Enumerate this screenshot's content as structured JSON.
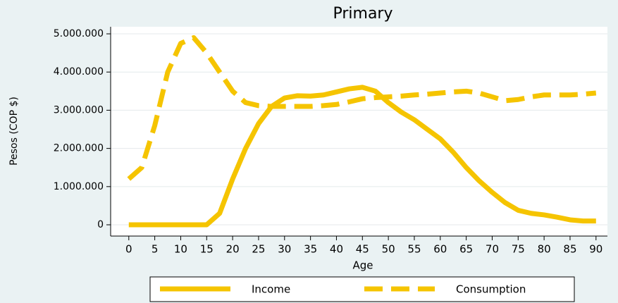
{
  "chart_data": {
    "type": "line",
    "title": "Primary",
    "x_label": "Age",
    "y_label": "Pesos (COP $)",
    "x": [
      0,
      2.5,
      5,
      7.5,
      10,
      12.5,
      15,
      17.5,
      20,
      22.5,
      25,
      27.5,
      30,
      32.5,
      35,
      37.5,
      40,
      42.5,
      45,
      47.5,
      50,
      52.5,
      55,
      57.5,
      60,
      62.5,
      65,
      67.5,
      70,
      72.5,
      75,
      77.5,
      80,
      82.5,
      85,
      87.5,
      90
    ],
    "series": [
      {
        "name": "Income",
        "color": "#f5c400",
        "dash": "solid",
        "values": [
          0,
          0,
          0,
          0,
          0,
          0,
          0,
          300000,
          1200000,
          2000000,
          2650000,
          3100000,
          3320000,
          3380000,
          3370000,
          3400000,
          3480000,
          3560000,
          3600000,
          3500000,
          3200000,
          2950000,
          2750000,
          2500000,
          2250000,
          1900000,
          1500000,
          1150000,
          850000,
          580000,
          380000,
          300000,
          260000,
          200000,
          130000,
          100000,
          100000
        ]
      },
      {
        "name": "Consumption",
        "color": "#f5c400",
        "dash": "dashed",
        "values": [
          1200000,
          1500000,
          2600000,
          4000000,
          4750000,
          4900000,
          4500000,
          4000000,
          3500000,
          3200000,
          3120000,
          3100000,
          3100000,
          3100000,
          3100000,
          3120000,
          3150000,
          3220000,
          3300000,
          3330000,
          3350000,
          3370000,
          3400000,
          3420000,
          3450000,
          3480000,
          3500000,
          3450000,
          3350000,
          3250000,
          3280000,
          3350000,
          3400000,
          3400000,
          3400000,
          3420000,
          3450000
        ]
      }
    ],
    "xlim": [
      -3.5,
      92.2
    ],
    "xticks": [
      0,
      5,
      10,
      15,
      20,
      25,
      30,
      35,
      40,
      45,
      50,
      55,
      60,
      65,
      70,
      75,
      80,
      85,
      90
    ],
    "ylim": [
      -295000,
      5185000
    ],
    "yticks": [
      0,
      {
        "value": 1000000,
        "label": "1.000.000"
      },
      {
        "value": 2000000,
        "label": "2.000.000"
      },
      {
        "value": 3000000,
        "label": "3.000.000"
      },
      {
        "value": 4000000,
        "label": "4.000.000"
      },
      {
        "value": 5000000,
        "label": "5.000.000"
      }
    ],
    "grid": true,
    "legend": "bottom"
  }
}
